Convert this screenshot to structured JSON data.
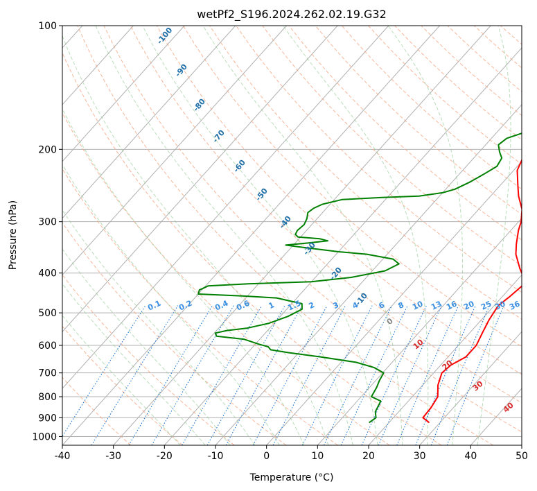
{
  "chart_data": {
    "type": "line",
    "title": "wetPf2_S196.2024.262.02.19.G32",
    "xlabel": "Temperature (°C)",
    "ylabel": "Pressure (hPa)",
    "xlim": [
      -40,
      50
    ],
    "ylim": [
      1050,
      100
    ],
    "y_scale": "log",
    "grid": true,
    "x_ticks": [
      -40,
      -30,
      -20,
      -10,
      0,
      10,
      20,
      30,
      40,
      50
    ],
    "y_ticks": [
      100,
      200,
      300,
      400,
      500,
      600,
      700,
      800,
      900,
      1000
    ],
    "series": [
      {
        "role": "temperature",
        "color": "#ff0000",
        "points": [
          [
            27.9,
            925
          ],
          [
            25.8,
            900
          ],
          [
            25.6,
            850
          ],
          [
            25.0,
            800
          ],
          [
            23.0,
            750
          ],
          [
            21.6,
            700
          ],
          [
            22.0,
            670
          ],
          [
            23.5,
            640
          ],
          [
            23.5,
            600
          ],
          [
            22.5,
            560
          ],
          [
            21.5,
            520
          ],
          [
            20.8,
            480
          ],
          [
            21.5,
            455
          ],
          [
            22.0,
            430
          ],
          [
            20.8,
            410
          ],
          [
            18.5,
            390
          ],
          [
            15.2,
            360
          ],
          [
            13.5,
            340
          ],
          [
            11.5,
            315
          ],
          [
            10.5,
            300
          ],
          [
            8.5,
            280
          ],
          [
            5.5,
            260
          ],
          [
            3.5,
            245
          ],
          [
            0.7,
            225
          ],
          [
            -0.4,
            210
          ],
          [
            -1.2,
            195
          ],
          [
            -1.6,
            183
          ],
          [
            -1.8,
            175
          ],
          [
            -1.8,
            162
          ],
          [
            -1.5,
            150
          ],
          [
            -1.5,
            143
          ],
          [
            -1.9,
            135
          ],
          [
            -2.4,
            127
          ],
          [
            -1.6,
            120
          ],
          [
            0.0,
            115
          ],
          [
            1.5,
            110
          ],
          [
            2.4,
            105
          ],
          [
            2.9,
            100
          ]
        ]
      },
      {
        "role": "dewpoint",
        "color": "#008000",
        "points": [
          [
            16.1,
            925
          ],
          [
            16.6,
            900
          ],
          [
            15.4,
            870
          ],
          [
            14.6,
            820
          ],
          [
            12.0,
            800
          ],
          [
            11.4,
            760
          ],
          [
            10.7,
            730
          ],
          [
            10.2,
            700
          ],
          [
            7.5,
            680
          ],
          [
            3.0,
            660
          ],
          [
            -5.0,
            640
          ],
          [
            -12.0,
            625
          ],
          [
            -16.0,
            615
          ],
          [
            -17.0,
            605
          ],
          [
            -19.5,
            595
          ],
          [
            -23.0,
            580
          ],
          [
            -29.0,
            570
          ],
          [
            -29.8,
            560
          ],
          [
            -28.0,
            552
          ],
          [
            -24.5,
            545
          ],
          [
            -21.0,
            530
          ],
          [
            -18.5,
            510
          ],
          [
            -17.0,
            490
          ],
          [
            -18.0,
            475
          ],
          [
            -24.0,
            460
          ],
          [
            -31.0,
            455
          ],
          [
            -40.0,
            450
          ],
          [
            -40.5,
            440
          ],
          [
            -39.5,
            430
          ],
          [
            -32.0,
            425
          ],
          [
            -20.0,
            420
          ],
          [
            -13.0,
            410
          ],
          [
            -7.5,
            395
          ],
          [
            -6.0,
            380
          ],
          [
            -8.0,
            370
          ],
          [
            -14.0,
            360
          ],
          [
            -20.0,
            355
          ],
          [
            -29.0,
            345
          ],
          [
            -31.5,
            342
          ],
          [
            -27.5,
            338
          ],
          [
            -24.0,
            334
          ],
          [
            -26.0,
            330
          ],
          [
            -30.5,
            327
          ],
          [
            -31.5,
            322
          ],
          [
            -31.8,
            315
          ],
          [
            -31.5,
            305
          ],
          [
            -32.0,
            295
          ],
          [
            -32.9,
            285
          ],
          [
            -32.5,
            278
          ],
          [
            -31.5,
            272
          ],
          [
            -28.5,
            265
          ],
          [
            -21.0,
            262
          ],
          [
            -14.0,
            260
          ],
          [
            -10.0,
            255
          ],
          [
            -8.2,
            250
          ],
          [
            -6.5,
            240
          ],
          [
            -5.2,
            230
          ],
          [
            -4.0,
            220
          ],
          [
            -4.5,
            210
          ],
          [
            -6.0,
            203
          ],
          [
            -7.5,
            195
          ],
          [
            -7.0,
            188
          ],
          [
            -3.8,
            180
          ],
          [
            -3.0,
            175
          ],
          [
            -3.5,
            170
          ],
          [
            -5.0,
            163
          ],
          [
            -5.8,
            155
          ],
          [
            -4.2,
            150
          ],
          [
            -2.0,
            145
          ],
          [
            -0.5,
            140
          ],
          [
            1.0,
            135
          ],
          [
            1.4,
            125
          ],
          [
            1.5,
            118
          ],
          [
            1.5,
            112
          ],
          [
            2.1,
            108
          ],
          [
            2.7,
            104
          ],
          [
            3.2,
            100
          ]
        ]
      }
    ],
    "dry_adiabat_labels": [
      "-100",
      "-90",
      "-80",
      "-70",
      "-60",
      "-50",
      "-40",
      "-30",
      "-20",
      "-10"
    ],
    "mixing_ratio_labels": [
      "0.1",
      "0.2",
      "0.4",
      "0.6",
      "1",
      "1.5",
      "2",
      "3",
      "4",
      "6",
      "8",
      "10",
      "13",
      "16",
      "20",
      "25",
      "30",
      "36"
    ],
    "moist_adiabat_labels": [
      "0",
      "10",
      "20",
      "30",
      "40"
    ]
  }
}
